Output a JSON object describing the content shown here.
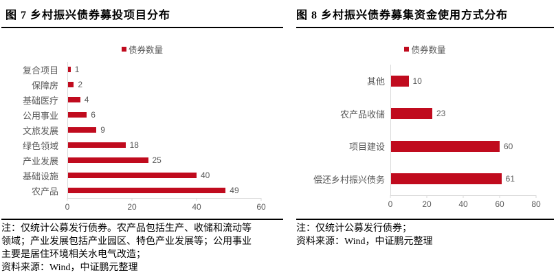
{
  "colors": {
    "bar": "#c00b1e",
    "muted_text": "#595959",
    "axis_line": "#d9d9d9",
    "rule": "#000000"
  },
  "chart_data": [
    {
      "type": "bar",
      "orientation": "horizontal",
      "title": "图 7 乡村振兴债券募投项目分布",
      "legend": "债券数量",
      "categories": [
        "复合项目",
        "保障房",
        "基础医疗",
        "公用事业",
        "文旅发展",
        "绿色领域",
        "产业发展",
        "基础设施",
        "农产品"
      ],
      "values": [
        1,
        2,
        4,
        6,
        9,
        18,
        25,
        40,
        49
      ],
      "xlim": [
        0,
        60
      ],
      "xticks": [
        0,
        20,
        40,
        60
      ],
      "data_labels": true,
      "grid": false,
      "legend_position": "top-center",
      "note": "注：仅统计公募发行债券。农产品包括生产、收储和流动等\n领域；产业发展包括产业园区、特色产业发展等；公用事业\n主要是居住环境相关水电气改造；",
      "source": "资料来源：Wind，中证鹏元整理"
    },
    {
      "type": "bar",
      "orientation": "horizontal",
      "title": "图 8 乡村振兴债券募集资金使用方式分布",
      "legend": "债券数量",
      "categories": [
        "其他",
        "农产品收储",
        "项目建设",
        "偿还乡村振兴债务"
      ],
      "values": [
        10,
        23,
        60,
        61
      ],
      "xlim": [
        0,
        80
      ],
      "xticks": [
        0,
        20,
        40,
        60,
        80
      ],
      "data_labels": true,
      "grid": false,
      "legend_position": "top-center",
      "note": "注：仅统计公募发行债券；",
      "source": "资料来源：Wind，中证鹏元整理"
    }
  ]
}
